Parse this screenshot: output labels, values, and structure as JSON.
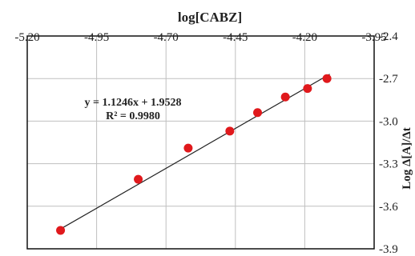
{
  "chart_data": {
    "type": "scatter",
    "title": "",
    "xlabel": "log[CABZ]",
    "ylabel": "Log Δ[A]/Δt",
    "xlim": [
      -5.2,
      -3.95
    ],
    "ylim": [
      -3.9,
      -2.4
    ],
    "x_axis_position": "top",
    "y_axis_position": "right",
    "x_reversed": true,
    "x_ticks": [
      "-5.20",
      "-4.95",
      "-4.70",
      "-4.45",
      "-4.20",
      "-3.95"
    ],
    "y_ticks": [
      "-2.4",
      "-2.7",
      "-3.0",
      "-3.3",
      "-3.6",
      "-3.9"
    ],
    "grid": true,
    "series": [
      {
        "marker_color": "#e0191c",
        "x": [
          -5.08,
          -4.8,
          -4.62,
          -4.47,
          -4.37,
          -4.27,
          -4.19,
          -4.12
        ],
        "y": [
          -3.77,
          -3.41,
          -3.19,
          -3.07,
          -2.94,
          -2.83,
          -2.77,
          -2.7
        ]
      }
    ],
    "trendline": {
      "slope": 1.1246,
      "intercept": 1.9528,
      "color": "#222222",
      "equation": "y = 1.1246x + 1.9528",
      "r2": "R² = 0.9980"
    }
  }
}
